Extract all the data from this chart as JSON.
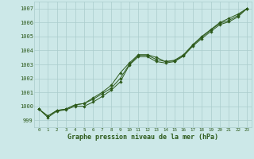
{
  "x": [
    0,
    1,
    2,
    3,
    4,
    5,
    6,
    7,
    8,
    9,
    10,
    11,
    12,
    13,
    14,
    15,
    16,
    17,
    18,
    19,
    20,
    21,
    22,
    23
  ],
  "line1": [
    999.8,
    999.3,
    999.7,
    999.8,
    1000.1,
    1000.2,
    1000.6,
    1001.0,
    1001.5,
    1002.4,
    1003.1,
    1003.7,
    1003.7,
    1003.5,
    1003.2,
    1003.3,
    1003.7,
    1004.4,
    1005.0,
    1005.5,
    1006.0,
    1006.3,
    1006.6,
    1007.0
  ],
  "line2": [
    999.8,
    999.3,
    999.7,
    999.8,
    1000.1,
    1000.2,
    1000.5,
    1000.9,
    1001.3,
    1002.0,
    1003.0,
    1003.65,
    1003.65,
    1003.35,
    1003.2,
    1003.25,
    1003.65,
    1004.35,
    1004.95,
    1005.45,
    1005.95,
    1006.15,
    1006.5,
    1007.0
  ],
  "line3": [
    999.8,
    999.2,
    999.65,
    999.75,
    1000.0,
    1000.0,
    1000.3,
    1000.7,
    1001.15,
    1001.75,
    1002.95,
    1003.55,
    1003.55,
    1003.2,
    1003.1,
    1003.2,
    1003.6,
    1004.3,
    1004.85,
    1005.35,
    1005.85,
    1006.05,
    1006.4,
    1007.0
  ],
  "ylim": [
    998.5,
    1007.5
  ],
  "yticks": [
    999,
    1000,
    1001,
    1002,
    1003,
    1004,
    1005,
    1006,
    1007
  ],
  "xtick_labels": [
    "0",
    "1",
    "2",
    "3",
    "4",
    "5",
    "6",
    "7",
    "8",
    "9",
    "10",
    "11",
    "12",
    "13",
    "14",
    "15",
    "16",
    "17",
    "18",
    "19",
    "20",
    "21",
    "22",
    "23"
  ],
  "xlabel": "Graphe pression niveau de la mer (hPa)",
  "line_color": "#2d5a1b",
  "bg_color": "#cce8e8",
  "grid_color": "#aacccc",
  "marker": "D",
  "markersize": 1.8,
  "linewidth": 0.7,
  "ytick_fontsize": 5.0,
  "xtick_fontsize": 4.2,
  "xlabel_fontsize": 6.0
}
